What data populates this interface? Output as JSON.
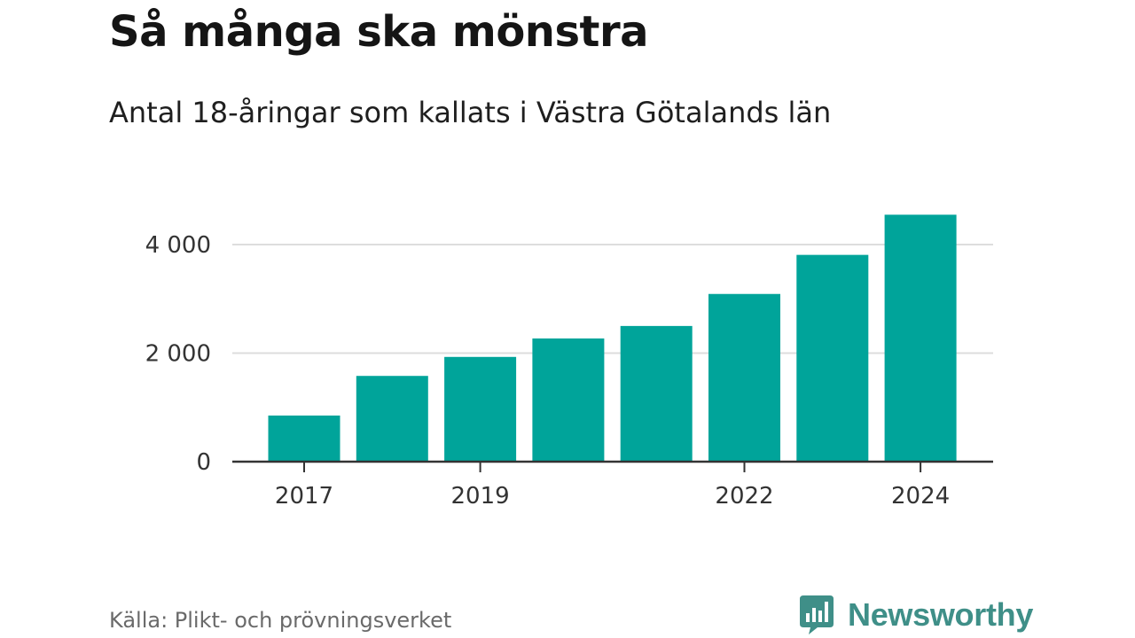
{
  "header": {
    "title": "Så många ska mönstra",
    "subtitle": "Antal 18-åringar som kallats i Västra Götalands län"
  },
  "footer": {
    "source": "Källa: Plikt- och prövningsverket",
    "brand": "Newsworthy",
    "brand_icon": "chart-bubble-icon"
  },
  "colors": {
    "bar": "#00a49a",
    "grid": "#dddddd",
    "axis": "#333333",
    "brand": "#3f8f88"
  },
  "chart_data": {
    "type": "bar",
    "title": "Så många ska mönstra",
    "subtitle": "Antal 18-åringar som kallats i Västra Götalands län",
    "categories": [
      "2017",
      "2018",
      "2019",
      "2020",
      "2021",
      "2022",
      "2023",
      "2024"
    ],
    "values": [
      850,
      1580,
      1930,
      2270,
      2500,
      3090,
      3810,
      4550
    ],
    "shown_x_ticks": [
      "2017",
      "2019",
      "2022",
      "2024"
    ],
    "y_ticks": [
      0,
      2000,
      4000
    ],
    "y_tick_labels": [
      "0",
      "2 000",
      "4 000"
    ],
    "ylim": [
      0,
      4700
    ],
    "xlabel": "",
    "ylabel": "",
    "grid": true
  }
}
